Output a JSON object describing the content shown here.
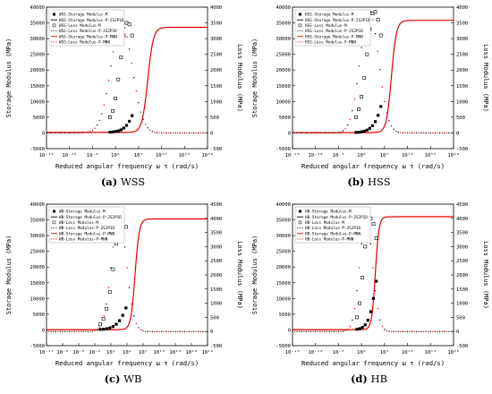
{
  "figure": {
    "panels": [
      {
        "tag": "(a)",
        "name": "WSS"
      },
      {
        "tag": "(b)",
        "name": "HSS"
      },
      {
        "tag": "(c)",
        "name": "WB"
      },
      {
        "tag": "(d)",
        "name": "HB"
      }
    ]
  },
  "colors": {
    "fit_storage": "#e00000",
    "fit_loss": "#e00000",
    "markers": "#000000",
    "axes": "#000000"
  },
  "chart_data": [
    {
      "type": "scatter",
      "xlabel": "Reduced angular frequency  ω τ  (rad/s)",
      "ylabel": "Storage Modulus (MPa)",
      "y2label": "Loss Modulus (MPa)",
      "x_scale": "log",
      "xlim_exp": [
        -15,
        20
      ],
      "x_ticks": [
        "10⁻¹⁵",
        "10⁻¹⁰",
        "10⁻⁵",
        "10⁰",
        "10⁵",
        "10¹⁰",
        "10¹⁵",
        "10²⁰"
      ],
      "ylim": [
        -5000,
        40000
      ],
      "y_ticks": [
        "-5000",
        "0",
        "5000",
        "10000",
        "15000",
        "20000",
        "25000",
        "30000",
        "35000",
        "40000"
      ],
      "y2lim": [
        -500,
        4000
      ],
      "y2_ticks": [
        "-500",
        "0",
        "500",
        "1000",
        "1500",
        "2000",
        "2500",
        "3000",
        "3500",
        "4000"
      ],
      "legend": [
        "WSS-Storage Modulus-M",
        "WSS-Storage Modulus-P-2S2P1D",
        "WSS-Loss Modulus-M",
        "WSS-Loss Modulus-P-2S2P1D",
        "WSS-Storage Modulus-P-MNN",
        "WSS-Loss Modulus-P-MNN"
      ],
      "legend_position": "top-left",
      "model": {
        "E0": 150,
        "Einf": 33600,
        "center_exp": 7.0,
        "width_dec": 2.8,
        "loss_peak": 3500,
        "loss_center_exp": 1.3,
        "loss_width_dec": 2.3,
        "loss_base": 0
      },
      "measured_storage": {
        "x_exp": [
          -1.2,
          -0.6,
          0,
          0.6,
          1.2,
          1.8,
          2.4,
          3.0,
          3.6
        ],
        "y": [
          250,
          310,
          430,
          640,
          980,
          1550,
          2400,
          3700,
          5500
        ]
      },
      "measured_loss": {
        "x_exp": [
          -1.2,
          -0.6,
          0,
          0.6,
          1.2,
          1.8,
          2.4,
          3.0,
          3.6
        ],
        "y": [
          500,
          700,
          1100,
          1700,
          2400,
          3100,
          3500,
          3450,
          3100
        ]
      }
    },
    {
      "type": "scatter",
      "xlabel": "Reduced angular frequency  ω τ  (rad/s)",
      "ylabel": "Storage Modulus (MPa)",
      "y2label": "Loss Modulus (MPa)",
      "x_scale": "log",
      "xlim_exp": [
        -15,
        20
      ],
      "x_ticks": [
        "10⁻¹⁵",
        "10⁻¹⁰",
        "10⁻⁵",
        "10⁰",
        "10⁵",
        "10¹⁰",
        "10¹⁵",
        "10²⁰"
      ],
      "ylim": [
        -5000,
        40000
      ],
      "y_ticks": [
        "-5000",
        "0",
        "5000",
        "10000",
        "15000",
        "20000",
        "25000",
        "30000",
        "35000",
        "40000"
      ],
      "y2lim": [
        -500,
        4000
      ],
      "y2_ticks": [
        "-500",
        "0",
        "500",
        "1000",
        "1500",
        "2000",
        "2500",
        "3000",
        "3500",
        "4000"
      ],
      "legend": [
        "HSS-Storage Modulus-M",
        "HSS-Storage Modulus-P-2S2P1D",
        "HSS-Loss Modulus-M",
        "HSS-Loss Modulus-P-2S2P1D",
        "HSS-Storage Modulus-P-MNN",
        "HSS-Loss Modulus-P-MNN"
      ],
      "legend_position": "top-left",
      "model": {
        "E0": 100,
        "Einf": 35800,
        "center_exp": 6.5,
        "width_dec": 2.5,
        "loss_peak": 3900,
        "loss_center_exp": 1.7,
        "loss_width_dec": 2.0,
        "loss_base": 0
      },
      "measured_storage": {
        "x_exp": [
          -1.2,
          -0.6,
          0,
          0.6,
          1.2,
          1.8,
          2.4,
          3.0,
          3.6,
          4.2
        ],
        "y": [
          150,
          220,
          350,
          560,
          900,
          1450,
          2300,
          3600,
          5600,
          8400
        ]
      },
      "measured_loss": {
        "x_exp": [
          -1.2,
          -0.6,
          0,
          0.6,
          1.2,
          1.8,
          2.4,
          3.0,
          3.6,
          4.2
        ],
        "y": [
          500,
          750,
          1150,
          1750,
          2500,
          3300,
          3800,
          3850,
          3600,
          3100
        ]
      }
    },
    {
      "type": "scatter",
      "xlabel": "Reduced angular frequency  ω τ  (rad/s)",
      "ylabel": "Storage Modulus (MPa)",
      "y2label": "Loss Modulus (MPa)",
      "x_scale": "log",
      "xlim_exp": [
        -11,
        19
      ],
      "x_ticks": [
        "10⁻¹¹",
        "10⁻⁸",
        "10⁻⁵",
        "10⁻²",
        "10¹",
        "10⁴",
        "10⁷",
        "10¹⁰",
        "10¹³",
        "10¹⁶",
        "10¹⁹"
      ],
      "ylim": [
        -5000,
        40000
      ],
      "y_ticks": [
        "-5000",
        "0",
        "5000",
        "10000",
        "15000",
        "20000",
        "25000",
        "30000",
        "35000",
        "40000"
      ],
      "y2lim": [
        -500,
        4500
      ],
      "y2_ticks": [
        "-500",
        "0",
        "500",
        "1000",
        "1500",
        "2000",
        "2500",
        "3000",
        "3500",
        "4000",
        "4500"
      ],
      "legend": [
        "WB-Storage Modulus-M",
        "WB-Storage Modulus-P-2S2P1D",
        "WB-Loss Modulus-M",
        "WB-Loss Modulus-P-2S2P1D",
        "WB-Storage Modulus-P-MNN",
        "WB-Loss Modulus-P-MNN"
      ],
      "legend_position": "top-left",
      "model": {
        "E0": 100,
        "Einf": 35300,
        "center_exp": 5.5,
        "width_dec": 1.8,
        "loss_peak": 4000,
        "loss_center_exp": 2.5,
        "loss_width_dec": 1.4,
        "loss_base": 0
      },
      "measured_storage": {
        "x_exp": [
          -1.0,
          -0.4,
          0.2,
          0.8,
          1.4,
          2.0,
          2.6,
          3.2,
          3.8
        ],
        "y": [
          150,
          230,
          380,
          640,
          1080,
          1800,
          2950,
          4650,
          7000
        ]
      },
      "measured_loss": {
        "x_exp": [
          -1.0,
          -0.4,
          0.2,
          0.8,
          1.4,
          2.0,
          2.6,
          3.2,
          3.8
        ],
        "y": [
          250,
          450,
          800,
          1400,
          2200,
          3100,
          3800,
          4000,
          3700
        ]
      }
    },
    {
      "type": "scatter",
      "xlabel": "Reduced angular frequency  ω τ  (rad/s)",
      "ylabel": "Storage Modulus (MPa)",
      "y2label": "Loss Modulus (MPa)",
      "x_scale": "log",
      "xlim_exp": [
        -15,
        20
      ],
      "x_ticks": [
        "10⁻¹⁵",
        "10⁻¹⁰",
        "10⁻⁵",
        "10⁰",
        "10⁵",
        "10¹⁰",
        "10¹⁵",
        "10²⁰"
      ],
      "ylim": [
        -5000,
        40000
      ],
      "y_ticks": [
        "-5000",
        "0",
        "5000",
        "10000",
        "15000",
        "20000",
        "25000",
        "30000",
        "35000",
        "40000"
      ],
      "y2lim": [
        -500,
        4500
      ],
      "y2_ticks": [
        "-500",
        "0",
        "500",
        "1000",
        "1500",
        "2000",
        "2500",
        "3000",
        "3500",
        "4000",
        "4500"
      ],
      "legend": [
        "HB-Storage Modulus-M",
        "HB-Storage Modulus-P-2S2P1D",
        "HB-Loss Modulus-M",
        "HB-Loss Modulus-P-2S2P1D",
        "HB-Storage Modulus-P-MNN",
        "HB-Loss Modulus-P-MNN"
      ],
      "legend_position": "top-left",
      "model": {
        "E0": 100,
        "Einf": 36000,
        "center_exp": 3.0,
        "width_dec": 1.8,
        "loss_peak": 4000,
        "loss_center_exp": 1.0,
        "loss_width_dec": 1.4,
        "loss_base": 0
      },
      "measured_storage": {
        "x_exp": [
          -1.0,
          -0.4,
          0.2,
          0.8,
          1.4,
          2.0,
          2.6,
          3.2
        ],
        "y": [
          200,
          400,
          800,
          1600,
          3100,
          5800,
          10000,
          15500
        ]
      },
      "measured_loss": {
        "x_exp": [
          -1.0,
          -0.4,
          0.2,
          0.8,
          1.4,
          2.0,
          2.6,
          3.2
        ],
        "y": [
          500,
          1000,
          1900,
          3000,
          3800,
          4000,
          3800,
          3300
        ]
      }
    }
  ]
}
